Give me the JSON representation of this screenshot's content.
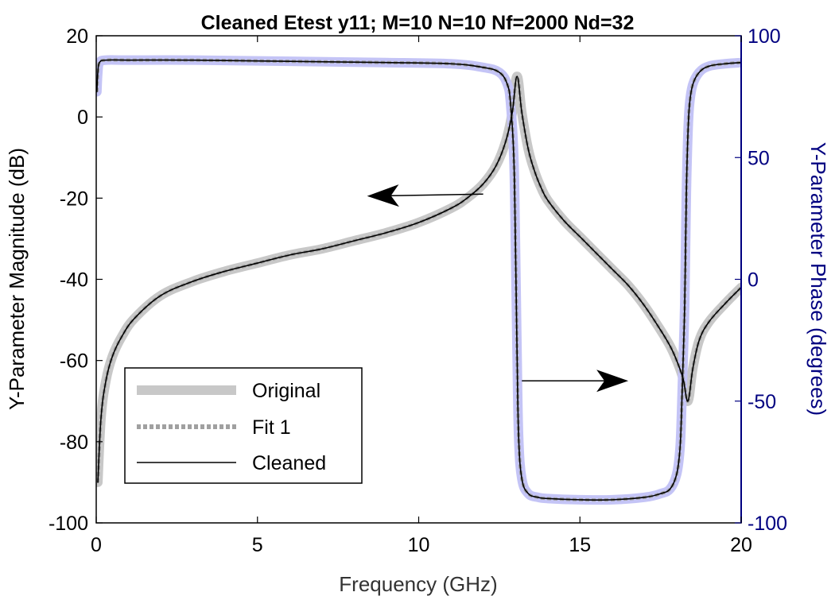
{
  "chart_data": {
    "type": "line",
    "title": "Cleaned Etest y11; M=10 N=10 Nf=2000 Nd=32",
    "xlabel": "Frequency (GHz)",
    "ylabel_left": "Y-Parameter Magnitude (dB)",
    "ylabel_right": "Y-Parameter Phase (degrees)",
    "xlim": [
      0,
      20
    ],
    "ylim_left": [
      -100,
      20
    ],
    "ylim_right": [
      -100,
      100
    ],
    "xticks": [
      "0",
      "5",
      "10",
      "15",
      "20"
    ],
    "yticks_left": [
      "20",
      "0",
      "-20",
      "-40",
      "-60",
      "-80",
      "-100"
    ],
    "yticks_right": [
      "100",
      "50",
      "0",
      "-50",
      "-100"
    ],
    "grid": false,
    "legend": {
      "position": "bottom-left",
      "entries": [
        "Original",
        "Fit 1",
        "Cleaned"
      ]
    },
    "colors": {
      "right_axis": "#000080",
      "original_magnitude": "#c8c8c8",
      "original_phase": "#c4c4f6",
      "fit": "#a0a0a0",
      "cleaned": "#000000"
    },
    "series": [
      {
        "name": "Original",
        "axis": "left",
        "x": [
          0.05,
          0.15,
          0.3,
          0.5,
          0.8,
          1.2,
          2,
          3,
          4,
          5,
          6,
          7,
          8,
          9,
          10,
          11,
          11.5,
          12,
          12.4,
          12.7,
          12.9,
          13.05,
          13.2,
          13.4,
          13.6,
          13.8,
          14,
          14.5,
          15,
          15.5,
          16,
          16.5,
          17,
          17.5,
          17.8,
          18,
          18.2,
          18.35,
          18.5,
          18.7,
          19,
          19.5,
          20
        ],
        "y": [
          -90,
          -74,
          -65,
          -59,
          -54,
          -49.5,
          -44,
          -40.5,
          -38,
          -36,
          -34,
          -32.5,
          -30.5,
          -28.5,
          -26,
          -22.5,
          -20,
          -16.5,
          -12,
          -6,
          1,
          10,
          1,
          -8,
          -13.5,
          -17.5,
          -20.5,
          -25.5,
          -29.5,
          -33.5,
          -37.5,
          -41.5,
          -46.5,
          -52.5,
          -56.5,
          -60,
          -64.5,
          -70,
          -62,
          -55,
          -50.5,
          -46,
          -42
        ]
      },
      {
        "name": "Original",
        "axis": "right",
        "x": [
          0.02,
          0.05,
          0.1,
          0.3,
          1,
          3,
          6,
          9,
          11,
          12,
          12.5,
          12.75,
          12.85,
          12.95,
          13.0,
          13.05,
          13.1,
          13.2,
          13.4,
          13.7,
          14,
          15,
          16,
          17,
          17.5,
          17.8,
          18.0,
          18.1,
          18.15,
          18.25,
          18.3,
          18.35,
          18.4,
          18.5,
          18.7,
          19,
          19.5,
          20
        ],
        "y": [
          77,
          85,
          89,
          90,
          90,
          90,
          89.5,
          89,
          88.5,
          87,
          85,
          80,
          72,
          50,
          15,
          -30,
          -65,
          -82,
          -88,
          -89.5,
          -90,
          -90.5,
          -90.5,
          -89.5,
          -88,
          -86,
          -80,
          -70,
          -55,
          -10,
          35,
          60,
          72,
          80,
          85,
          87.5,
          88.5,
          89
        ]
      },
      {
        "name": "Fit 1",
        "axis": "left",
        "x": [
          0.05,
          0.15,
          0.3,
          0.5,
          0.8,
          1.2,
          2,
          3,
          4,
          5,
          6,
          7,
          8,
          9,
          10,
          11,
          11.5,
          12,
          12.4,
          12.7,
          12.9,
          13.05,
          13.2,
          13.4,
          13.6,
          13.8,
          14,
          14.5,
          15,
          15.5,
          16,
          16.5,
          17,
          17.5,
          17.8,
          18,
          18.2,
          18.35,
          18.5,
          18.7,
          19,
          19.5,
          20
        ],
        "y": [
          -90,
          -74,
          -65,
          -59,
          -54,
          -49.5,
          -44,
          -40.5,
          -38,
          -36,
          -34,
          -32.5,
          -30.5,
          -28.5,
          -26,
          -22.5,
          -20,
          -16.5,
          -12,
          -6,
          1,
          10,
          1,
          -8,
          -13.5,
          -17.5,
          -20.5,
          -25.5,
          -29.5,
          -33.5,
          -37.5,
          -41.5,
          -46.5,
          -52.5,
          -56.5,
          -60,
          -64.5,
          -70,
          -62,
          -55,
          -50.5,
          -46,
          -42
        ]
      },
      {
        "name": "Fit 1",
        "axis": "right",
        "x": [
          0.02,
          0.05,
          0.1,
          0.3,
          1,
          3,
          6,
          9,
          11,
          12,
          12.5,
          12.75,
          12.85,
          12.95,
          13.0,
          13.05,
          13.1,
          13.2,
          13.4,
          13.7,
          14,
          15,
          16,
          17,
          17.5,
          17.8,
          18.0,
          18.1,
          18.15,
          18.25,
          18.3,
          18.35,
          18.4,
          18.5,
          18.7,
          19,
          19.5,
          20
        ],
        "y": [
          77,
          85,
          89,
          90,
          90,
          90,
          89.5,
          89,
          88.5,
          87,
          85,
          80,
          72,
          50,
          15,
          -30,
          -65,
          -82,
          -88,
          -89.5,
          -90,
          -90.5,
          -90.5,
          -89.5,
          -88,
          -86,
          -80,
          -70,
          -55,
          -10,
          35,
          60,
          72,
          80,
          85,
          87.5,
          88.5,
          89
        ]
      },
      {
        "name": "Cleaned",
        "axis": "left",
        "x": [
          0.05,
          0.15,
          0.3,
          0.5,
          0.8,
          1.2,
          2,
          3,
          4,
          5,
          6,
          7,
          8,
          9,
          10,
          11,
          11.5,
          12,
          12.4,
          12.7,
          12.9,
          13.05,
          13.2,
          13.4,
          13.6,
          13.8,
          14,
          14.5,
          15,
          15.5,
          16,
          16.5,
          17,
          17.5,
          17.8,
          18,
          18.2,
          18.35,
          18.5,
          18.7,
          19,
          19.5,
          20
        ],
        "y": [
          -90,
          -74,
          -65,
          -59,
          -54,
          -49.5,
          -44,
          -40.5,
          -38,
          -36,
          -34,
          -32.5,
          -30.5,
          -28.5,
          -26,
          -22.5,
          -20,
          -16.5,
          -12,
          -6,
          1,
          10,
          1,
          -8,
          -13.5,
          -17.5,
          -20.5,
          -25.5,
          -29.5,
          -33.5,
          -37.5,
          -41.5,
          -46.5,
          -52.5,
          -56.5,
          -60,
          -64.5,
          -70,
          -62,
          -55,
          -50.5,
          -46,
          -42
        ]
      },
      {
        "name": "Cleaned",
        "axis": "right",
        "x": [
          0.02,
          0.05,
          0.1,
          0.3,
          1,
          3,
          6,
          9,
          11,
          12,
          12.5,
          12.75,
          12.85,
          12.95,
          13.0,
          13.05,
          13.1,
          13.2,
          13.4,
          13.7,
          14,
          15,
          16,
          17,
          17.5,
          17.8,
          18.0,
          18.1,
          18.15,
          18.25,
          18.3,
          18.35,
          18.4,
          18.5,
          18.7,
          19,
          19.5,
          20
        ],
        "y": [
          77,
          85,
          89,
          90,
          90,
          90,
          89.5,
          89,
          88.5,
          87,
          85,
          80,
          72,
          50,
          15,
          -30,
          -65,
          -82,
          -88,
          -89.5,
          -90,
          -90.5,
          -90.5,
          -89.5,
          -88,
          -86,
          -80,
          -70,
          -55,
          -10,
          35,
          60,
          72,
          80,
          85,
          87.5,
          88.5,
          89
        ]
      }
    ],
    "annotations": [
      {
        "type": "arrow",
        "axis": "left",
        "from": [
          12,
          -19
        ],
        "to": [
          8.4,
          -19.5
        ],
        "meaning": "magnitude curve uses left axis"
      },
      {
        "type": "arrow",
        "axis": "left",
        "from": [
          13.2,
          -65
        ],
        "to": [
          16.5,
          -65
        ],
        "meaning": "phase curve uses right axis"
      }
    ]
  }
}
